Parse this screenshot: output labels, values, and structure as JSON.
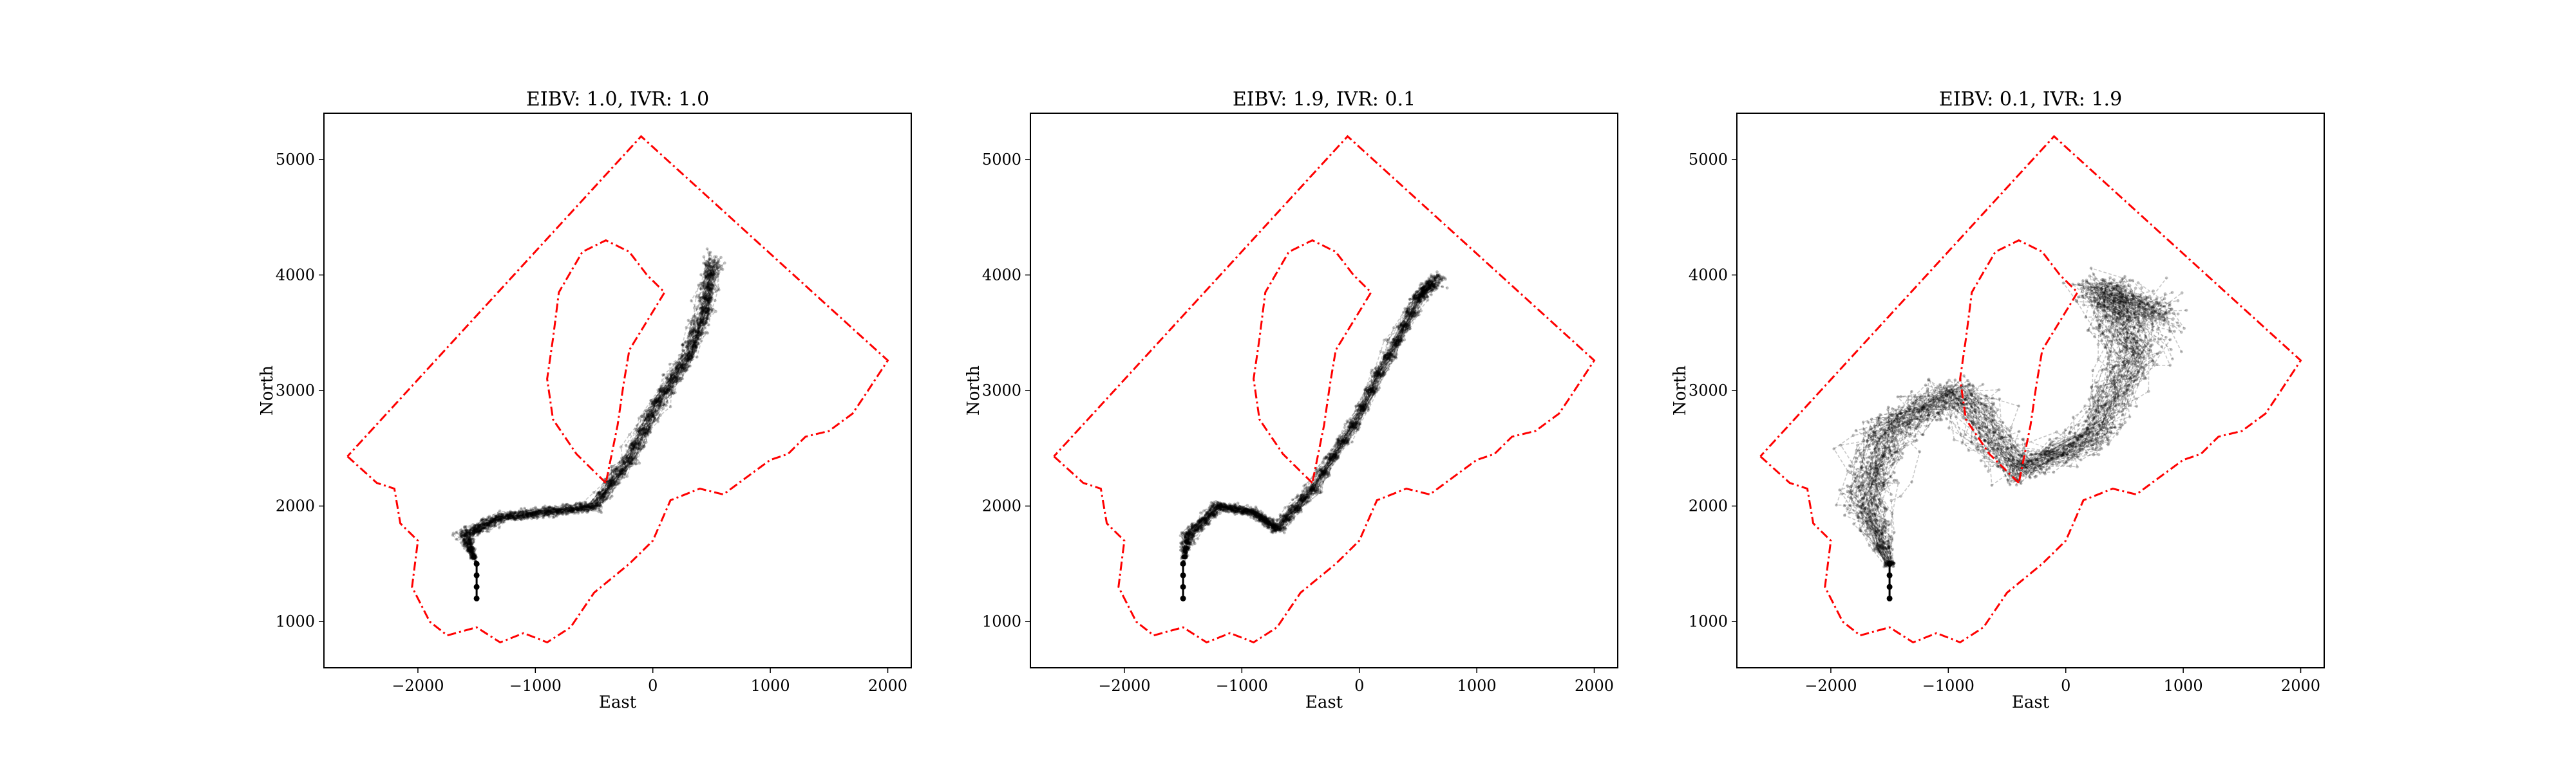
{
  "figure": {
    "panels": [
      {
        "title": "EIBV: 1.0, IVR: 1.0",
        "xlabel": "East",
        "ylabel": "North"
      },
      {
        "title": "EIBV: 1.9, IVR: 0.1",
        "xlabel": "East",
        "ylabel": "North"
      },
      {
        "title": "EIBV: 0.1, IVR: 1.9",
        "xlabel": "East",
        "ylabel": "North"
      }
    ]
  },
  "chart_data": [
    {
      "type": "line",
      "title": "EIBV: 1.0, IVR: 1.0",
      "xlabel": "East",
      "ylabel": "North",
      "xlim": [
        -2800,
        2200
      ],
      "ylim": [
        600,
        5400
      ],
      "xticks": [
        -2000,
        -1000,
        0,
        1000,
        2000
      ],
      "xtick_labels": [
        "−2000",
        "−1000",
        "0",
        "1000",
        "2000"
      ],
      "yticks": [
        1000,
        2000,
        3000,
        4000,
        5000
      ],
      "ytick_labels": [
        "1000",
        "2000",
        "3000",
        "4000",
        "5000"
      ],
      "grid": false,
      "boundary_color": "#ff0000",
      "trajectory_color": "#000000",
      "spread": 130,
      "path_centerline": [
        [
          -1500,
          1500
        ],
        [
          -1600,
          1750
        ],
        [
          -1300,
          1900
        ],
        [
          -900,
          1950
        ],
        [
          -500,
          2000
        ],
        [
          -200,
          2400
        ],
        [
          50,
          2900
        ],
        [
          300,
          3300
        ],
        [
          450,
          3700
        ],
        [
          500,
          4100
        ]
      ]
    },
    {
      "type": "line",
      "title": "EIBV: 1.9, IVR: 0.1",
      "xlabel": "East",
      "ylabel": "North",
      "xlim": [
        -2800,
        2200
      ],
      "ylim": [
        600,
        5400
      ],
      "xticks": [
        -2000,
        -1000,
        0,
        1000,
        2000
      ],
      "xtick_labels": [
        "−2000",
        "−1000",
        "0",
        "1000",
        "2000"
      ],
      "yticks": [
        1000,
        2000,
        3000,
        4000,
        5000
      ],
      "ytick_labels": [
        "1000",
        "2000",
        "3000",
        "4000",
        "5000"
      ],
      "grid": false,
      "boundary_color": "#ff0000",
      "trajectory_color": "#000000",
      "spread": 110,
      "path_centerline": [
        [
          -1500,
          1500
        ],
        [
          -1450,
          1750
        ],
        [
          -1200,
          2000
        ],
        [
          -900,
          1950
        ],
        [
          -700,
          1800
        ],
        [
          -400,
          2150
        ],
        [
          -50,
          2700
        ],
        [
          250,
          3300
        ],
        [
          500,
          3800
        ],
        [
          650,
          3950
        ]
      ]
    },
    {
      "type": "line",
      "title": "EIBV: 0.1, IVR: 1.9",
      "xlabel": "East",
      "ylabel": "North",
      "xlim": [
        -2800,
        2200
      ],
      "ylim": [
        600,
        5400
      ],
      "xticks": [
        -2000,
        -1000,
        0,
        1000,
        2000
      ],
      "xtick_labels": [
        "−2000",
        "−1000",
        "0",
        "1000",
        "2000"
      ],
      "yticks": [
        1000,
        2000,
        3000,
        4000,
        5000
      ],
      "ytick_labels": [
        "1000",
        "2000",
        "3000",
        "4000",
        "5000"
      ],
      "grid": false,
      "boundary_color": "#ff0000",
      "trajectory_color": "#000000",
      "spread": 420,
      "path_centerline": [
        [
          -1500,
          1500
        ],
        [
          -1700,
          2100
        ],
        [
          -1500,
          2700
        ],
        [
          -900,
          3000
        ],
        [
          -400,
          2300
        ],
        [
          200,
          2600
        ],
        [
          600,
          3300
        ],
        [
          300,
          3900
        ],
        [
          800,
          3600
        ]
      ]
    }
  ],
  "shared": {
    "operational_boundary": [
      [
        -2600,
        2430
      ],
      [
        -2350,
        2200
      ],
      [
        -2200,
        2150
      ],
      [
        -2150,
        1850
      ],
      [
        -2000,
        1700
      ],
      [
        -2050,
        1300
      ],
      [
        -1900,
        1000
      ],
      [
        -1750,
        880
      ],
      [
        -1500,
        950
      ],
      [
        -1300,
        820
      ],
      [
        -1100,
        900
      ],
      [
        -900,
        820
      ],
      [
        -700,
        950
      ],
      [
        -500,
        1250
      ],
      [
        -200,
        1500
      ],
      [
        0,
        1700
      ],
      [
        150,
        2050
      ],
      [
        400,
        2150
      ],
      [
        600,
        2100
      ],
      [
        800,
        2250
      ],
      [
        1000,
        2400
      ],
      [
        1150,
        2450
      ],
      [
        1300,
        2600
      ],
      [
        1500,
        2650
      ],
      [
        1700,
        2800
      ],
      [
        1800,
        2950
      ],
      [
        2000,
        3260
      ],
      [
        -100,
        5200
      ],
      [
        -2600,
        2430
      ]
    ],
    "obstacle": [
      [
        -400,
        2200
      ],
      [
        -650,
        2450
      ],
      [
        -850,
        2750
      ],
      [
        -900,
        3100
      ],
      [
        -850,
        3450
      ],
      [
        -800,
        3850
      ],
      [
        -600,
        4200
      ],
      [
        -400,
        4300
      ],
      [
        -200,
        4200
      ],
      [
        -50,
        4000
      ],
      [
        100,
        3850
      ],
      [
        -50,
        3600
      ],
      [
        -200,
        3350
      ],
      [
        -250,
        3050
      ],
      [
        -300,
        2700
      ],
      [
        -400,
        2200
      ]
    ],
    "start_points": [
      [
        -1500,
        1200
      ],
      [
        -1500,
        1300
      ],
      [
        -1500,
        1400
      ],
      [
        -1500,
        1500
      ]
    ]
  }
}
